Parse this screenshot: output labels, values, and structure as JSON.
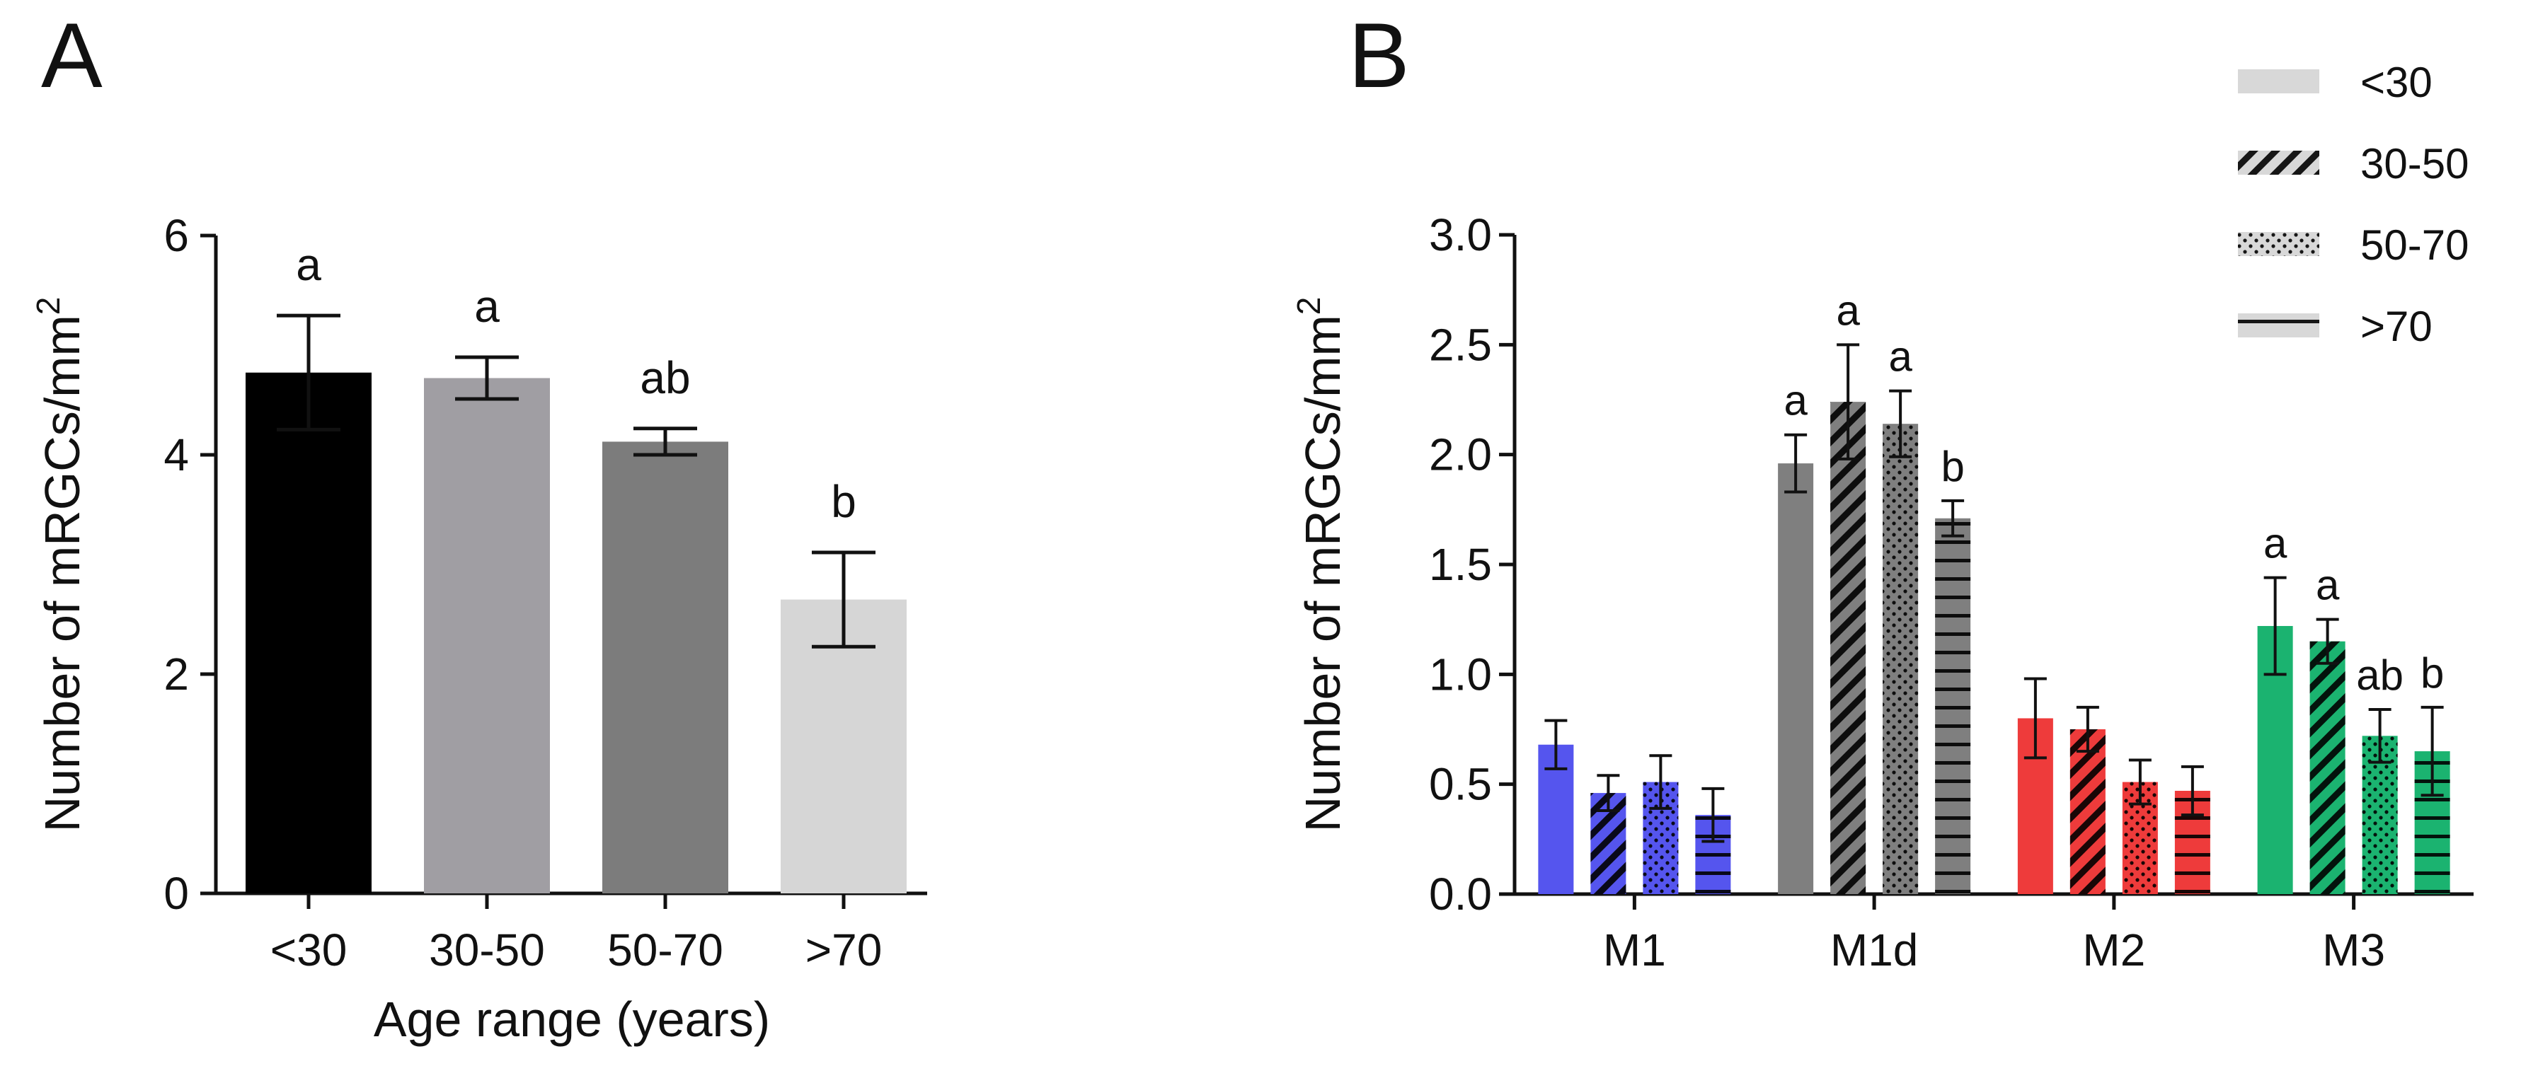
{
  "figure": {
    "panel_a_letter": "A",
    "panel_b_letter": "B"
  },
  "chart_data": [
    {
      "type": "bar",
      "panel": "A",
      "title": "",
      "xlabel": "Age range (years)",
      "ylabel_main": "Number of mRGCs/mm",
      "ylabel_sup": "2",
      "categories": [
        "<30",
        "30-50",
        "50-70",
        ">70"
      ],
      "values": [
        4.75,
        4.7,
        4.12,
        2.68
      ],
      "errors": [
        0.52,
        0.19,
        0.12,
        0.43
      ],
      "sig_labels": [
        "a",
        "a",
        "ab",
        "b"
      ],
      "colors": [
        "#000000",
        "#a09ea3",
        "#7c7c7c",
        "#d6d6d6"
      ],
      "ylim": [
        0,
        6
      ],
      "yticks": [
        0,
        2,
        4,
        6
      ],
      "ytick_labels": [
        "0",
        "2",
        "4",
        "6"
      ]
    },
    {
      "type": "bar",
      "panel": "B",
      "title": "",
      "xlabel": "",
      "ylabel_main": "Number of mRGCs/mm",
      "ylabel_sup": "2",
      "categories": [
        "M1",
        "M1d",
        "M2",
        "M3"
      ],
      "group_colors": [
        "#5555ee",
        "#7f7f7f",
        "#ee3b3b",
        "#1bb370"
      ],
      "series": [
        {
          "name": "<30",
          "pattern": "solid",
          "values": [
            0.68,
            1.96,
            0.8,
            1.22
          ],
          "errors": [
            0.11,
            0.13,
            0.18,
            0.22
          ],
          "sig_labels": [
            "",
            "a",
            "",
            "a"
          ]
        },
        {
          "name": "30-50",
          "pattern": "diagonal",
          "values": [
            0.46,
            2.24,
            0.75,
            1.15
          ],
          "errors": [
            0.08,
            0.26,
            0.1,
            0.1
          ],
          "sig_labels": [
            "",
            "a",
            "",
            "a"
          ]
        },
        {
          "name": "50-70",
          "pattern": "dots",
          "values": [
            0.51,
            2.14,
            0.51,
            0.72
          ],
          "errors": [
            0.12,
            0.15,
            0.1,
            0.12
          ],
          "sig_labels": [
            "",
            "a",
            "",
            "ab"
          ]
        },
        {
          "name": ">70",
          "pattern": "horizontal",
          "values": [
            0.36,
            1.71,
            0.47,
            0.65
          ],
          "errors": [
            0.12,
            0.08,
            0.11,
            0.2
          ],
          "sig_labels": [
            "",
            "b",
            "",
            "b"
          ]
        }
      ],
      "legend": {
        "position": "top-right",
        "entries": [
          "<30",
          "30-50",
          "50-70",
          ">70"
        ]
      },
      "ylim": [
        0,
        3.0
      ],
      "yticks": [
        0,
        0.5,
        1.0,
        1.5,
        2.0,
        2.5,
        3.0
      ],
      "ytick_labels": [
        "0.0",
        "0.5",
        "1.0",
        "1.5",
        "2.0",
        "2.5",
        "3.0"
      ]
    }
  ]
}
